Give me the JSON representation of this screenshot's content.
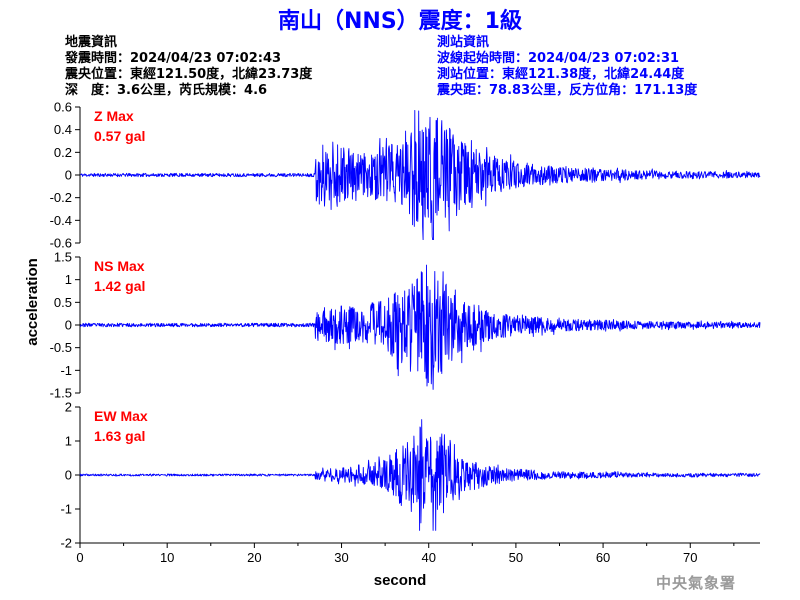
{
  "title": "南山（NNS）震度：1級",
  "earthquake_info": {
    "heading": "地震資訊",
    "time": "發震時間：2024/04/23 07:02:43",
    "location": "震央位置：東經121.50度，北緯23.73度",
    "depth_magnitude": "深　度：3.6公里，芮氏規模：4.6"
  },
  "station_info": {
    "heading": "測站資訊",
    "wave_start": "波線起始時間：2024/04/23 07:02:31",
    "location": "測站位置：東經121.38度，北緯24.44度",
    "distance_azimuth": "震央距：78.83公里，反方位角：171.13度"
  },
  "credit": "中央氣象署",
  "colors": {
    "trace": "#0000ff",
    "max_label": "#ff0000",
    "axis": "#000000",
    "title": "#0000ff",
    "credit": "#9a9a9a"
  },
  "chart_data": {
    "type": "line",
    "xlabel": "second",
    "ylabel": "acceleration",
    "xlim": [
      0,
      78
    ],
    "xticks": [
      0,
      10,
      20,
      30,
      40,
      50,
      60,
      70
    ],
    "grid": false,
    "panels": [
      {
        "component": "Z",
        "label": "Z Max",
        "max_text": "0.57 gal",
        "peak": 0.57,
        "ylim": [
          -0.6,
          0.6
        ],
        "yticks": [
          0.6,
          0.4,
          0.2,
          0,
          -0.2,
          -0.4,
          -0.6
        ],
        "ytick_labels": [
          "0.6",
          "0.4",
          "0.2",
          "0",
          "-0.2",
          "-0.4",
          "-0.6"
        ],
        "noise_pre": 0.015,
        "onset": 27,
        "envelope": [
          [
            27,
            0.25
          ],
          [
            29,
            0.32
          ],
          [
            32,
            0.18
          ],
          [
            36,
            0.28
          ],
          [
            38.5,
            0.48
          ],
          [
            40.5,
            0.57
          ],
          [
            42,
            0.45
          ],
          [
            44,
            0.3
          ],
          [
            47,
            0.18
          ],
          [
            50,
            0.12
          ],
          [
            55,
            0.07
          ],
          [
            65,
            0.04
          ],
          [
            78,
            0.025
          ]
        ],
        "seed": 11
      },
      {
        "component": "NS",
        "label": "NS Max",
        "max_text": "1.42 gal",
        "peak": 1.42,
        "ylim": [
          -1.5,
          1.5
        ],
        "yticks": [
          1.5,
          1,
          0.5,
          0,
          -0.5,
          -1,
          -1.5
        ],
        "ytick_labels": [
          "1.5",
          "1",
          "0.5",
          "0",
          "-0.5",
          "-1",
          "-1.5"
        ],
        "noise_pre": 0.04,
        "onset": 27,
        "envelope": [
          [
            27,
            0.3
          ],
          [
            29,
            0.45
          ],
          [
            32,
            0.4
          ],
          [
            35,
            0.6
          ],
          [
            38,
            1.0
          ],
          [
            40,
            1.42
          ],
          [
            42,
            1.0
          ],
          [
            44,
            0.6
          ],
          [
            47,
            0.35
          ],
          [
            50,
            0.22
          ],
          [
            55,
            0.14
          ],
          [
            65,
            0.08
          ],
          [
            78,
            0.06
          ]
        ],
        "seed": 23
      },
      {
        "component": "EW",
        "label": "EW Max",
        "max_text": "1.63 gal",
        "peak": 1.63,
        "ylim": [
          -2,
          2
        ],
        "yticks": [
          2,
          1,
          0,
          -1,
          -2
        ],
        "ytick_labels": [
          "2",
          "1",
          "0",
          "-1",
          "-2"
        ],
        "noise_pre": 0.03,
        "onset": 27,
        "envelope": [
          [
            27,
            0.12
          ],
          [
            29,
            0.2
          ],
          [
            32,
            0.25
          ],
          [
            35,
            0.45
          ],
          [
            38,
            1.2
          ],
          [
            40,
            1.63
          ],
          [
            42,
            1.2
          ],
          [
            44,
            0.6
          ],
          [
            47,
            0.3
          ],
          [
            50,
            0.18
          ],
          [
            55,
            0.1
          ],
          [
            65,
            0.06
          ],
          [
            78,
            0.05
          ]
        ],
        "seed": 37
      }
    ]
  }
}
